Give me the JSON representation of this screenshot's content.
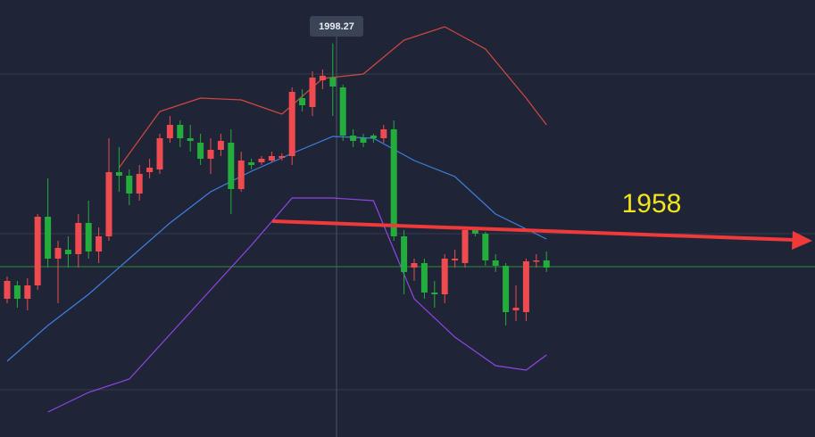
{
  "chart_data": {
    "type": "candlestick",
    "crosshair_label": 1998.27,
    "annotation": "1958",
    "ylim": [
      1910,
      2008
    ],
    "up_color": "#ee4a4f",
    "down_color": "#22ad3c",
    "price_line": 1948.2,
    "price_line_color": "#2f8a3c",
    "open": [
      1941,
      1944,
      1941,
      1944,
      1959.4,
      1950,
      1952,
      1951,
      1958,
      1951.6,
      1955,
      1969.4,
      1968.6,
      1964.6,
      1969.4,
      1970,
      1977,
      1980,
      1977,
      1976,
      1972.4,
      1974.4,
      1976,
      1965.6,
      1971.6,
      1971.6,
      1972,
      1972.6,
      1973,
      1986,
      1984,
      1990,
      1990.6,
      1988.4,
      1977.6,
      1977,
      1977.6,
      1977,
      1979,
      1955,
      1948,
      1949,
      1942.4,
      1942,
      1949.6,
      1949,
      1956.4,
      1955.6,
      1949.6,
      1948.4,
      1938.4,
      1938,
      1949.6,
      1949.6
    ],
    "high": [
      1946,
      1945,
      1945.6,
      1960,
      1968,
      1954,
      1955,
      1960,
      1963,
      1957,
      1977,
      1975,
      1970,
      1971,
      1972.4,
      1978,
      1982,
      1981,
      1980,
      1978,
      1977,
      1978,
      1979,
      1974,
      1972.4,
      1973,
      1974,
      1973.6,
      1988.4,
      1988,
      1992,
      1992.4,
      1998.27,
      1989,
      1979,
      1978,
      1978,
      1980,
      1981,
      1956.4,
      1950,
      1950,
      1945,
      1951,
      1952,
      1957,
      1956.4,
      1956,
      1951,
      1949,
      1944,
      1950,
      1951,
      1951.6
    ],
    "low": [
      1940,
      1939,
      1938.4,
      1943,
      1948,
      1940,
      1948,
      1948,
      1950,
      1949,
      1954,
      1965,
      1962,
      1963,
      1968,
      1969,
      1976,
      1975,
      1974,
      1971,
      1969,
      1973,
      1960,
      1965,
      1970,
      1971,
      1971.6,
      1972,
      1971,
      1983,
      1982,
      1988,
      1982,
      1976.4,
      1975,
      1975,
      1976,
      1976,
      1954,
      1942,
      1945,
      1941,
      1939,
      1940,
      1948,
      1948,
      1955,
      1948.4,
      1947,
      1935,
      1936,
      1936,
      1948,
      1947
    ],
    "close": [
      1945,
      1941,
      1944,
      1959.4,
      1950,
      1952.4,
      1951,
      1958,
      1951.6,
      1955,
      1969.4,
      1968.6,
      1964.6,
      1969,
      1970.4,
      1977,
      1980,
      1977,
      1976.4,
      1972.4,
      1974.4,
      1976.4,
      1965.6,
      1972,
      1971,
      1972.4,
      1973,
      1973,
      1987.4,
      1984.4,
      1990.6,
      1991,
      1988.6,
      1977.6,
      1976.4,
      1976,
      1977,
      1979,
      1955,
      1947,
      1949,
      1942.4,
      1942,
      1950,
      1950,
      1956.4,
      1955.6,
      1949.6,
      1948.4,
      1938,
      1939,
      1949.4,
      1949.6,
      1948
    ],
    "series": [
      {
        "color": "#d2493f",
        "x": [
          11,
          15,
          19,
          23,
          27,
          31,
          35,
          39,
          43,
          47,
          51,
          53
        ],
        "values": [
          1970.4,
          1983,
          1986,
          1985.6,
          1982.4,
          1990.4,
          1991.4,
          1999,
          2002,
          1997,
          1986,
          1980
        ]
      },
      {
        "color": "#3f7fe0",
        "x": [
          0,
          4,
          8,
          12,
          16,
          20,
          24,
          28,
          32,
          36,
          40,
          44,
          48,
          53
        ],
        "values": [
          1927,
          1935,
          1942,
          1950,
          1958,
          1965,
          1969.6,
          1973.6,
          1977.4,
          1977,
          1972,
          1968.4,
          1960,
          1954.4
        ]
      },
      {
        "color": "#8f45e6",
        "x": [
          4,
          8,
          12,
          16,
          20,
          24,
          28,
          32,
          36,
          40,
          44,
          48,
          51,
          53
        ],
        "values": [
          1915.6,
          1920,
          1923,
          1933,
          1943,
          1953,
          1963.6,
          1963.6,
          1963,
          1941,
          1932.4,
          1926,
          1925,
          1928.4
        ]
      }
    ]
  }
}
